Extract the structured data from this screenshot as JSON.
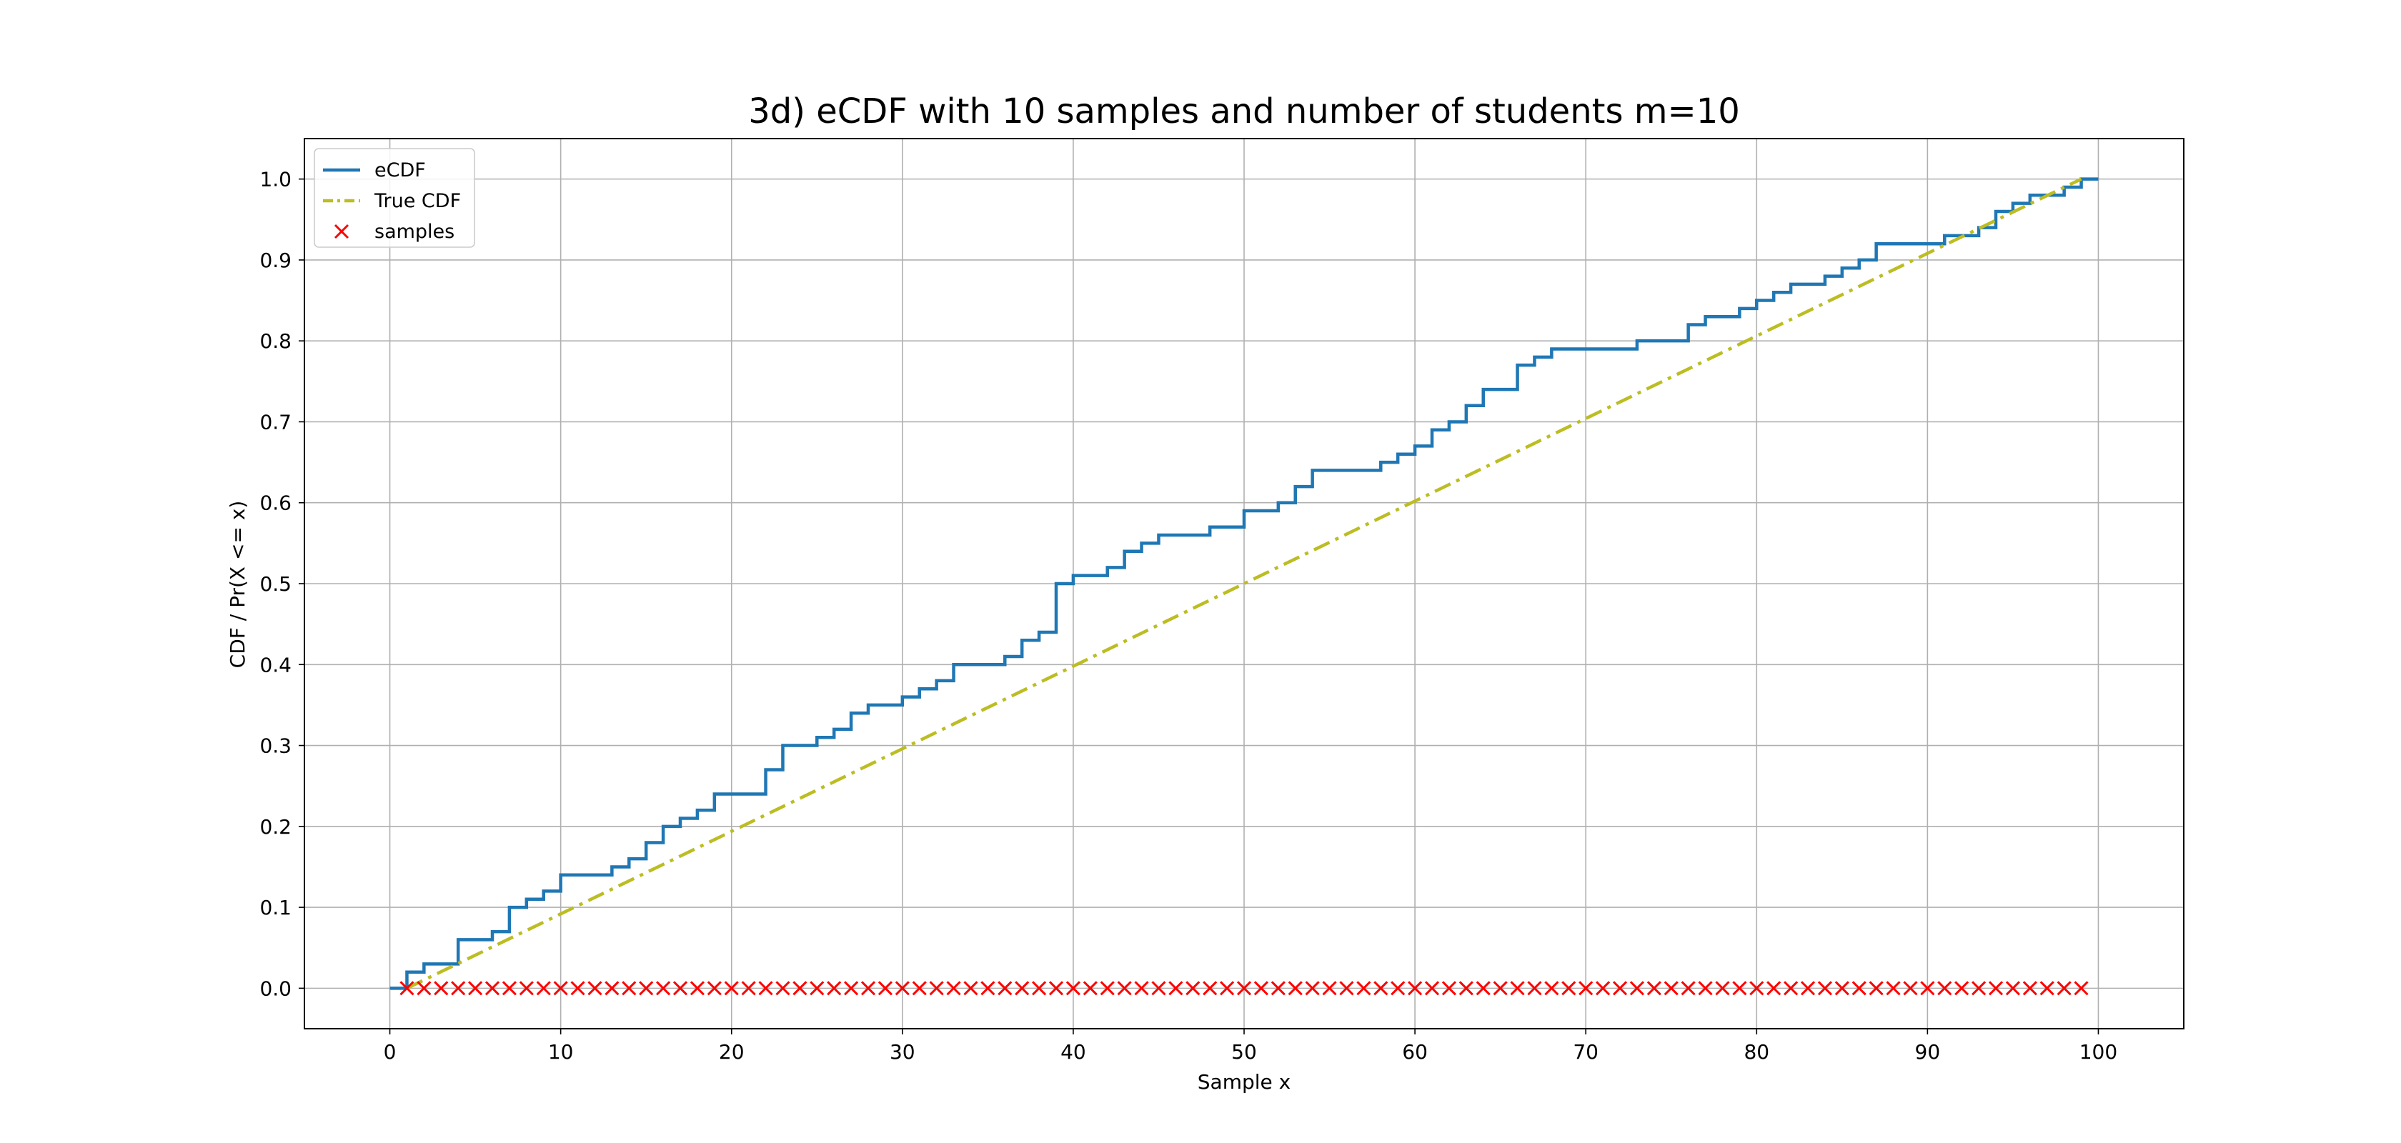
{
  "chart_data": {
    "type": "line",
    "title": "3d) eCDF with 10 samples and number of students m=10",
    "xlabel": "Sample x",
    "ylabel": "CDF / Pr(X <= x)",
    "xlim": [
      -5,
      105
    ],
    "ylim": [
      -0.05,
      1.05
    ],
    "xticks": [
      0,
      10,
      20,
      30,
      40,
      50,
      60,
      70,
      80,
      90,
      100
    ],
    "yticks": [
      0.0,
      0.1,
      0.2,
      0.3,
      0.4,
      0.5,
      0.6,
      0.7,
      0.8,
      0.9,
      1.0
    ],
    "grid": true,
    "legend_position": "upper-left",
    "legend": [
      "eCDF",
      "True CDF",
      "samples"
    ],
    "series": [
      {
        "name": "eCDF",
        "kind": "step",
        "color": "#1f77b4",
        "x": [
          0,
          1,
          2,
          4,
          6,
          7,
          8,
          9,
          10,
          13,
          14,
          15,
          16,
          17,
          18,
          19,
          22,
          23,
          25,
          26,
          27,
          28,
          30,
          31,
          32,
          33,
          36,
          37,
          38,
          39,
          40,
          42,
          43,
          44,
          45,
          48,
          50,
          52,
          53,
          54,
          58,
          59,
          60,
          61,
          62,
          63,
          64,
          66,
          67,
          68,
          73,
          76,
          77,
          79,
          80,
          81,
          82,
          84,
          85,
          86,
          87,
          91,
          93,
          94,
          95,
          96,
          98,
          99,
          100
        ],
        "y": [
          0.0,
          0.02,
          0.03,
          0.06,
          0.07,
          0.1,
          0.11,
          0.12,
          0.14,
          0.15,
          0.16,
          0.18,
          0.2,
          0.21,
          0.22,
          0.24,
          0.27,
          0.3,
          0.31,
          0.32,
          0.34,
          0.35,
          0.36,
          0.37,
          0.38,
          0.4,
          0.41,
          0.43,
          0.44,
          0.5,
          0.51,
          0.52,
          0.54,
          0.55,
          0.56,
          0.57,
          0.59,
          0.6,
          0.62,
          0.64,
          0.65,
          0.66,
          0.67,
          0.69,
          0.7,
          0.72,
          0.74,
          0.77,
          0.78,
          0.79,
          0.8,
          0.82,
          0.83,
          0.84,
          0.85,
          0.86,
          0.87,
          0.88,
          0.89,
          0.9,
          0.92,
          0.93,
          0.94,
          0.96,
          0.97,
          0.98,
          0.99,
          1.0,
          1.0
        ]
      },
      {
        "name": "True CDF",
        "kind": "line",
        "color": "#bcbd22",
        "dash": "dashdot",
        "x": [
          1,
          99
        ],
        "y": [
          0.0,
          1.0
        ]
      },
      {
        "name": "samples",
        "kind": "scatter",
        "marker": "x",
        "color": "#ff0000",
        "x": [
          1,
          2,
          3,
          4,
          5,
          6,
          7,
          8,
          9,
          10,
          11,
          12,
          13,
          14,
          15,
          16,
          17,
          18,
          19,
          20,
          21,
          22,
          23,
          24,
          25,
          26,
          27,
          28,
          29,
          30,
          31,
          32,
          33,
          34,
          35,
          36,
          37,
          38,
          39,
          40,
          41,
          42,
          43,
          44,
          45,
          46,
          47,
          48,
          49,
          50,
          51,
          52,
          53,
          54,
          55,
          56,
          57,
          58,
          59,
          60,
          61,
          62,
          63,
          64,
          65,
          66,
          67,
          68,
          69,
          70,
          71,
          72,
          73,
          74,
          75,
          76,
          77,
          78,
          79,
          80,
          81,
          82,
          83,
          84,
          85,
          86,
          87,
          88,
          89,
          90,
          91,
          92,
          93,
          94,
          95,
          96,
          97,
          98,
          99
        ],
        "y_constant": 0.0
      }
    ]
  }
}
